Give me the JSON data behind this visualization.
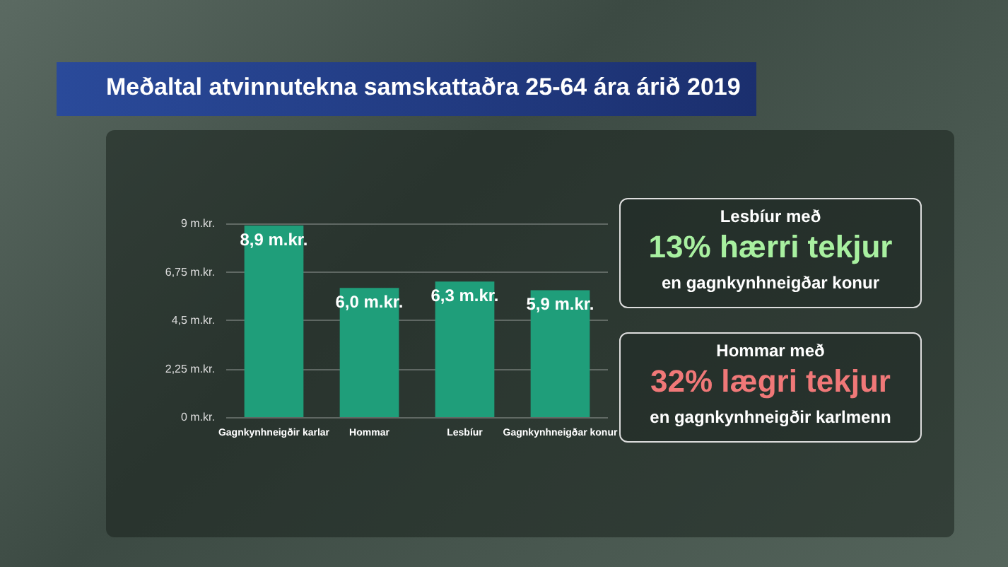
{
  "chart_data": {
    "type": "bar",
    "title": "Meðaltal atvinnutekna samskattaðra 25-64 ára árið 2019",
    "categories": [
      "Gagnkynhneigðir karlar",
      "Hommar",
      "Lesbíur",
      "Gagnkynhneigðar konur"
    ],
    "values": [
      8.9,
      6.0,
      6.3,
      5.9
    ],
    "color": "#1f9e7a",
    "value_labels": [
      "8,9 m.kr.",
      "6,0 m.kr.",
      "6,3 m.kr.",
      "5,9 m.kr."
    ],
    "ylim": [
      0,
      9
    ],
    "yticks": [
      {
        "value": 0,
        "label": "0 m.kr."
      },
      {
        "value": 2.25,
        "label": "2,25 m.kr."
      },
      {
        "value": 4.5,
        "label": "4,5 m.kr."
      },
      {
        "value": 6.75,
        "label": "6,75 m.kr."
      },
      {
        "value": 9,
        "label": "9 m.kr."
      }
    ],
    "grid": "y",
    "annotations": [
      "Lesbíur með",
      "13% hærri tekjur",
      "en gagnkynhneigðar konur",
      "Hommar með",
      "32% lægri tekjur",
      "en gagnkynhneigðir karlmenn"
    ]
  }
}
